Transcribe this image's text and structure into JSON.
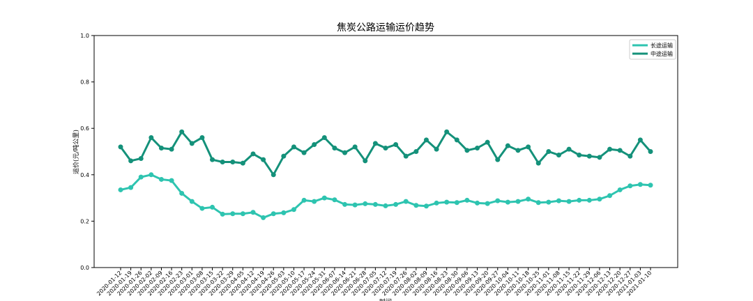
{
  "chart_data": {
    "type": "line",
    "title": "焦炭公路运输运价趋势",
    "x_label": "时间",
    "y_label": "运价(元/吨公里)",
    "categories": [
      "2020-01-12",
      "2020-01-19",
      "2020-01-26",
      "2020-02-02",
      "2020-02-09",
      "2020-02-16",
      "2020-02-23",
      "2020-03-01",
      "2020-03-08",
      "2020-03-15",
      "2020-03-22",
      "2020-03-29",
      "2020-04-05",
      "2020-04-12",
      "2020-04-19",
      "2020-04-26",
      "2020-05-03",
      "2020-05-10",
      "2020-05-17",
      "2020-05-24",
      "2020-05-31",
      "2020-06-07",
      "2020-06-14",
      "2020-06-21",
      "2020-06-28",
      "2020-07-05",
      "2020-07-12",
      "2020-07-19",
      "2020-07-26",
      "2020-08-02",
      "2020-08-09",
      "2020-08-16",
      "2020-08-23",
      "2020-08-30",
      "2020-09-06",
      "2020-09-13",
      "2020-09-20",
      "2020-09-27",
      "2020-10-04",
      "2020-10-11",
      "2020-10-18",
      "2020-10-25",
      "2020-11-01",
      "2020-11-08",
      "2020-11-15",
      "2020-11-22",
      "2020-11-29",
      "2020-12-06",
      "2020-12-13",
      "2020-12-20",
      "2020-12-27",
      "2021-01-03",
      "2021-01-10"
    ],
    "series": [
      {
        "name": "长途运输",
        "color": "#2ec4b0",
        "values": [
          0.335,
          0.345,
          0.39,
          0.4,
          0.38,
          0.375,
          0.32,
          0.285,
          0.255,
          0.26,
          0.23,
          0.232,
          0.232,
          0.238,
          0.215,
          0.232,
          0.236,
          0.25,
          0.29,
          0.285,
          0.3,
          0.292,
          0.272,
          0.27,
          0.275,
          0.272,
          0.266,
          0.272,
          0.285,
          0.268,
          0.265,
          0.278,
          0.282,
          0.28,
          0.29,
          0.278,
          0.276,
          0.288,
          0.282,
          0.285,
          0.295,
          0.28,
          0.282,
          0.288,
          0.285,
          0.29,
          0.29,
          0.295,
          0.31,
          0.335,
          0.352,
          0.358,
          0.355
        ]
      },
      {
        "name": "中途运输",
        "color": "#14917a",
        "values": [
          0.52,
          0.46,
          0.47,
          0.56,
          0.515,
          0.51,
          0.585,
          0.535,
          0.56,
          0.465,
          0.455,
          0.455,
          0.45,
          0.49,
          0.465,
          0.4,
          0.48,
          0.52,
          0.495,
          0.53,
          0.56,
          0.515,
          0.495,
          0.52,
          0.46,
          0.535,
          0.515,
          0.53,
          0.48,
          0.5,
          0.55,
          0.51,
          0.585,
          0.55,
          0.505,
          0.515,
          0.54,
          0.465,
          0.525,
          0.505,
          0.52,
          0.45,
          0.5,
          0.485,
          0.51,
          0.485,
          0.48,
          0.475,
          0.51,
          0.505,
          0.48,
          0.55,
          0.5
        ]
      }
    ],
    "ylim": [
      0,
      1
    ],
    "yticks": [
      {
        "value": 0,
        "label": "0.0"
      },
      {
        "value": 0.2,
        "label": "0.2"
      },
      {
        "value": 0.4,
        "label": "0.4"
      },
      {
        "value": 0.6,
        "label": "0.6"
      },
      {
        "value": 0.8,
        "label": "0.8"
      },
      {
        "value": 1,
        "label": "1.0"
      }
    ],
    "legend": "upper-right"
  }
}
